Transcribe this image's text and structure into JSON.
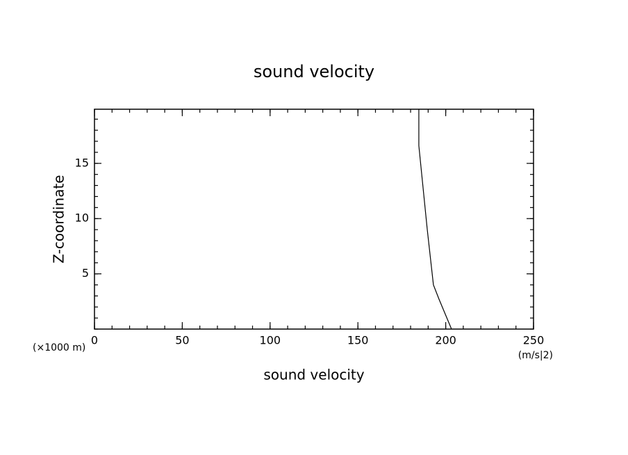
{
  "chart_data": {
    "type": "line",
    "title": "sound velocity",
    "x_label": "sound velocity",
    "y_label": "Z-coordinate",
    "x_unit": "(m/s|2)",
    "y_unit": "(×1000 m)",
    "x": [
      203.3,
      196.2,
      193.0,
      189.5,
      184.7,
      184.7
    ],
    "series": [
      {
        "color": "#000000",
        "values": [
          0,
          2.7,
          4.0,
          9.0,
          16.6,
          19.9
        ]
      }
    ],
    "xlim": [
      0,
      250
    ],
    "xticks": [
      0,
      50,
      100,
      150,
      200,
      250
    ],
    "xminor": 10,
    "ylim": [
      0,
      19.9
    ],
    "yticks": [
      5,
      10,
      15
    ],
    "yminor": 1,
    "grid": false
  }
}
